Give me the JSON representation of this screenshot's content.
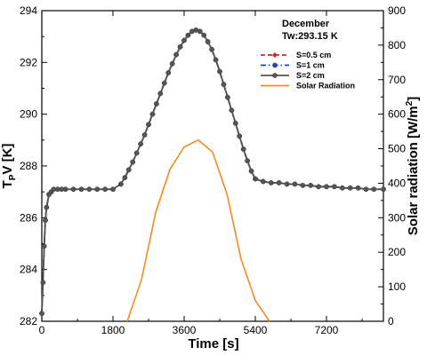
{
  "chart_data": {
    "type": "line",
    "annotations": [
      "December",
      "Tw:293.15 K"
    ],
    "xlabel": "Time [s]",
    "ylabel_left": "T_PV [K]",
    "ylabel_right": "Solar radiation [W/m^2]",
    "xlim": [
      0,
      8640
    ],
    "ylim_left": [
      282,
      294
    ],
    "ylim_right": [
      0,
      900
    ],
    "x_ticks": [
      0,
      1800,
      3600,
      5400,
      7200
    ],
    "y_left_ticks": [
      282,
      284,
      286,
      288,
      290,
      292,
      294
    ],
    "y_right_ticks": [
      0,
      100,
      200,
      300,
      400,
      500,
      600,
      700,
      800,
      900
    ],
    "legend_position": "top-right",
    "series": [
      {
        "name": "S=0.5 cm",
        "axis": "left",
        "color": "#d62728",
        "line_style": "dashed",
        "marker": "diamond",
        "x": [
          0,
          30,
          60,
          90,
          120,
          180,
          240,
          300,
          400,
          500,
          600,
          800,
          1000,
          1200,
          1400,
          1600,
          1800,
          2000,
          2100,
          2200,
          2300,
          2400,
          2500,
          2600,
          2700,
          2800,
          2900,
          3000,
          3100,
          3200,
          3300,
          3400,
          3500,
          3600,
          3700,
          3800,
          3900,
          4000,
          4100,
          4200,
          4300,
          4400,
          4500,
          4600,
          4700,
          4800,
          4900,
          5000,
          5100,
          5200,
          5300,
          5400,
          5600,
          5800,
          6000,
          6200,
          6400,
          6600,
          6800,
          7000,
          7200,
          7400,
          7600,
          7800,
          8000,
          8200,
          8400,
          8640
        ],
        "y": [
          282.3,
          283.5,
          284.9,
          285.9,
          286.4,
          286.9,
          287.0,
          287.1,
          287.1,
          287.1,
          287.1,
          287.1,
          287.1,
          287.1,
          287.1,
          287.1,
          287.1,
          287.3,
          287.55,
          287.85,
          288.15,
          288.5,
          288.85,
          289.2,
          289.6,
          290.0,
          290.4,
          290.8,
          291.2,
          291.6,
          291.95,
          292.3,
          292.6,
          292.85,
          293.05,
          293.2,
          293.25,
          293.2,
          293.05,
          292.8,
          292.5,
          292.1,
          291.65,
          291.15,
          290.65,
          290.15,
          289.65,
          289.15,
          288.65,
          288.2,
          287.8,
          287.5,
          287.4,
          287.35,
          287.35,
          287.3,
          287.3,
          287.25,
          287.25,
          287.2,
          287.2,
          287.2,
          287.15,
          287.15,
          287.15,
          287.1,
          287.1,
          287.1
        ]
      },
      {
        "name": "S=1 cm",
        "axis": "left",
        "color": "#1f3fd6",
        "line_style": "dashdot",
        "marker": "circle",
        "x": [
          0,
          30,
          60,
          90,
          120,
          180,
          240,
          300,
          400,
          500,
          600,
          800,
          1000,
          1200,
          1400,
          1600,
          1800,
          2000,
          2100,
          2200,
          2300,
          2400,
          2500,
          2600,
          2700,
          2800,
          2900,
          3000,
          3100,
          3200,
          3300,
          3400,
          3500,
          3600,
          3700,
          3800,
          3900,
          4000,
          4100,
          4200,
          4300,
          4400,
          4500,
          4600,
          4700,
          4800,
          4900,
          5000,
          5100,
          5200,
          5300,
          5400,
          5600,
          5800,
          6000,
          6200,
          6400,
          6600,
          6800,
          7000,
          7200,
          7400,
          7600,
          7800,
          8000,
          8200,
          8400,
          8640
        ],
        "y": [
          282.3,
          283.5,
          284.9,
          285.9,
          286.4,
          286.9,
          287.0,
          287.1,
          287.1,
          287.1,
          287.1,
          287.1,
          287.1,
          287.1,
          287.1,
          287.1,
          287.1,
          287.3,
          287.55,
          287.85,
          288.15,
          288.5,
          288.85,
          289.2,
          289.6,
          290.0,
          290.4,
          290.8,
          291.2,
          291.6,
          291.95,
          292.3,
          292.6,
          292.85,
          293.05,
          293.2,
          293.25,
          293.2,
          293.05,
          292.8,
          292.5,
          292.1,
          291.65,
          291.15,
          290.65,
          290.15,
          289.65,
          289.15,
          288.65,
          288.2,
          287.8,
          287.5,
          287.4,
          287.35,
          287.35,
          287.3,
          287.3,
          287.25,
          287.25,
          287.2,
          287.2,
          287.2,
          287.15,
          287.15,
          287.15,
          287.1,
          287.1,
          287.1
        ]
      },
      {
        "name": "S=2 cm",
        "axis": "left",
        "color": "#555555",
        "line_style": "solid",
        "marker": "circle",
        "x": [
          0,
          30,
          60,
          90,
          120,
          180,
          240,
          300,
          400,
          500,
          600,
          800,
          1000,
          1200,
          1400,
          1600,
          1800,
          2000,
          2100,
          2200,
          2300,
          2400,
          2500,
          2600,
          2700,
          2800,
          2900,
          3000,
          3100,
          3200,
          3300,
          3400,
          3500,
          3600,
          3700,
          3800,
          3900,
          4000,
          4100,
          4200,
          4300,
          4400,
          4500,
          4600,
          4700,
          4800,
          4900,
          5000,
          5100,
          5200,
          5300,
          5400,
          5600,
          5800,
          6000,
          6200,
          6400,
          6600,
          6800,
          7000,
          7200,
          7400,
          7600,
          7800,
          8000,
          8200,
          8400,
          8640
        ],
        "y": [
          282.3,
          283.5,
          284.9,
          285.9,
          286.4,
          286.9,
          287.0,
          287.1,
          287.1,
          287.1,
          287.1,
          287.1,
          287.1,
          287.1,
          287.1,
          287.1,
          287.1,
          287.3,
          287.55,
          287.85,
          288.15,
          288.5,
          288.85,
          289.2,
          289.6,
          290.0,
          290.4,
          290.8,
          291.2,
          291.6,
          291.95,
          292.3,
          292.6,
          292.85,
          293.05,
          293.2,
          293.25,
          293.2,
          293.05,
          292.8,
          292.5,
          292.1,
          291.65,
          291.15,
          290.65,
          290.15,
          289.65,
          289.15,
          288.65,
          288.2,
          287.8,
          287.5,
          287.4,
          287.35,
          287.35,
          287.3,
          287.3,
          287.25,
          287.25,
          287.2,
          287.2,
          287.2,
          287.15,
          287.15,
          287.15,
          287.1,
          287.1,
          287.1
        ]
      },
      {
        "name": "Solar Radiation",
        "axis": "right",
        "color": "#f28c1e",
        "line_style": "solid",
        "marker": "none",
        "x": [
          2160,
          2520,
          2880,
          3240,
          3600,
          3960,
          4320,
          4680,
          5040,
          5400,
          5760
        ],
        "y": [
          0,
          120,
          315,
          440,
          505,
          525,
          490,
          370,
          180,
          60,
          0
        ]
      }
    ]
  }
}
